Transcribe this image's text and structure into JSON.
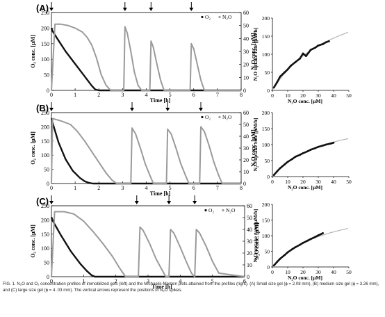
{
  "figure": {
    "caption": "FIG. 1. N₂O and O₂ concentration profiles of immobilized gels (left) and the Michaelis-Menten plots attained from the profiles (right). (A) Small size gel (ϕ = 2.08 mm), (B) medium size gel (ϕ = 3.26 mm), and (C) large size gel (ϕ = 4 .03 mm). The vertical arrows represent the positions of N₂O spikes."
  },
  "colors": {
    "o2": "#111111",
    "n2o": "#9a9a9a",
    "fit": "#b4b4b4",
    "axis": "#000000"
  },
  "chart_data": [
    {
      "panel": "(A)",
      "type": "line",
      "xlabel": "Time [h]",
      "ylabel": "O₂ conc. [μM]",
      "y2label": "N₂O conc. [μM]",
      "xlim": [
        0,
        8
      ],
      "xticks": [
        0,
        1,
        2,
        3,
        4,
        5,
        6,
        7,
        8
      ],
      "ylim": [
        0,
        250
      ],
      "yticks": [
        0,
        50,
        100,
        150,
        200,
        250
      ],
      "y2lim": [
        0,
        60
      ],
      "y2ticks": [
        0,
        10,
        20,
        30,
        40,
        50,
        60
      ],
      "legend": [
        "O₂",
        "N₂O"
      ],
      "legend_position": "top-right",
      "arrows_at_hours": [
        0,
        3.1,
        4.2,
        5.9
      ],
      "series": [
        {
          "name": "O₂",
          "axis": "left",
          "x": [
            0,
            0.05,
            0.3,
            0.6,
            1.0,
            1.4,
            1.7,
            1.85,
            2.0,
            8.0
          ],
          "y": [
            200,
            190,
            160,
            125,
            85,
            45,
            15,
            3,
            0,
            0
          ]
        },
        {
          "name": "N₂O",
          "axis": "right",
          "x": [
            0,
            0.15,
            0.4,
            0.7,
            1.0,
            1.3,
            1.5,
            1.7,
            1.9,
            2.1,
            2.3,
            2.5,
            3.05,
            3.1,
            3.2,
            3.35,
            3.5,
            3.65,
            3.8,
            4.15,
            4.2,
            4.3,
            4.45,
            4.6,
            4.75,
            5.85,
            5.9,
            6.0,
            6.15,
            6.3,
            6.45,
            8.0
          ],
          "y": [
            0,
            51,
            51,
            50,
            48,
            45,
            41,
            35,
            25,
            12,
            4,
            0,
            0,
            49,
            44,
            30,
            14,
            4,
            0,
            0,
            38,
            33,
            20,
            8,
            0,
            0,
            36,
            32,
            20,
            8,
            0,
            0
          ]
        }
      ]
    },
    {
      "panel": "(A)",
      "type": "scatter",
      "xlabel": "N₂O conc. [μM]",
      "ylabel": "N₂O uptake rate [μM/h]",
      "xlim": [
        0,
        50
      ],
      "xticks": [
        0,
        10,
        20,
        30,
        40,
        50
      ],
      "ylim": [
        0,
        200
      ],
      "yticks": [
        0,
        50,
        100,
        150,
        200
      ],
      "fit": {
        "Vmax": 300,
        "Km": 43
      },
      "series": [
        {
          "x": [
            1,
            3,
            5,
            8,
            10,
            12,
            15,
            18,
            20,
            22,
            25,
            28,
            30,
            33,
            35,
            37
          ],
          "y": [
            8,
            22,
            38,
            50,
            58,
            68,
            78,
            88,
            102,
            95,
            112,
            118,
            124,
            128,
            133,
            136
          ]
        }
      ]
    },
    {
      "panel": "(B)",
      "type": "line",
      "xlabel": "Time [h]",
      "ylabel": "O₂ conc. [μM]",
      "y2label": "N₂O conc. [μM]",
      "xlim": [
        0,
        8
      ],
      "xticks": [
        0,
        1,
        2,
        3,
        4,
        5,
        6,
        7,
        8
      ],
      "ylim": [
        0,
        250
      ],
      "yticks": [
        0,
        50,
        100,
        150,
        200,
        250
      ],
      "y2lim": [
        0,
        60
      ],
      "y2ticks": [
        0,
        10,
        20,
        30,
        40,
        50,
        60
      ],
      "legend": [
        "O₂",
        "N₂O"
      ],
      "legend_position": "top-right",
      "arrows_at_hours": [
        0,
        3.4,
        4.9,
        6.3
      ],
      "series": [
        {
          "name": "O₂",
          "axis": "left",
          "x": [
            0,
            0.1,
            0.3,
            0.6,
            0.9,
            1.2,
            1.4,
            1.6,
            1.75,
            8.0
          ],
          "y": [
            230,
            200,
            145,
            85,
            45,
            20,
            8,
            2,
            0,
            0
          ]
        },
        {
          "name": "N₂O",
          "axis": "right",
          "x": [
            0,
            0.05,
            0.4,
            0.8,
            1.1,
            1.4,
            1.7,
            2.0,
            2.3,
            2.55,
            2.75,
            3.35,
            3.4,
            3.55,
            3.75,
            3.95,
            4.15,
            4.3,
            4.85,
            4.9,
            5.05,
            5.25,
            5.45,
            5.65,
            5.8,
            6.25,
            6.3,
            6.45,
            6.65,
            6.85,
            7.05,
            7.2,
            8.0
          ],
          "y": [
            0,
            55,
            53,
            50,
            44,
            36,
            27,
            18,
            9,
            3,
            0,
            0,
            47,
            42,
            30,
            17,
            7,
            0,
            0,
            46,
            42,
            30,
            17,
            7,
            0,
            0,
            48,
            44,
            32,
            18,
            7,
            0,
            0
          ]
        }
      ]
    },
    {
      "panel": "(B)",
      "type": "scatter",
      "xlabel": "N₂O conc. [μM]",
      "ylabel": "N₂O uptake rate [μM/h]",
      "xlim": [
        0,
        50
      ],
      "xticks": [
        0,
        10,
        20,
        30,
        40,
        50
      ],
      "ylim": [
        0,
        200
      ],
      "yticks": [
        0,
        50,
        100,
        150,
        200
      ],
      "fit": {
        "Vmax": 200,
        "Km": 34
      },
      "series": [
        {
          "x": [
            1,
            3,
            5,
            8,
            10,
            13,
            15,
            18,
            20,
            23,
            25,
            28,
            30,
            33,
            35,
            38,
            40
          ],
          "y": [
            5,
            16,
            26,
            38,
            46,
            55,
            62,
            68,
            73,
            79,
            84,
            89,
            93,
            97,
            100,
            103,
            106
          ]
        }
      ]
    },
    {
      "panel": "(C)",
      "type": "line",
      "xlabel": "Time [h]",
      "ylabel": "O₂ conc. [μM]",
      "y2label": "N₂O conc. [μM]",
      "xlim": [
        0,
        6
      ],
      "xticks": [
        0,
        1,
        2,
        3,
        4,
        5,
        6
      ],
      "ylim": [
        0,
        250
      ],
      "yticks": [
        0,
        50,
        100,
        150,
        200,
        250
      ],
      "y2lim": [
        0,
        60
      ],
      "y2ticks": [
        0,
        10,
        20,
        30,
        40,
        50,
        60
      ],
      "legend": [
        "O₂",
        "N₂O"
      ],
      "legend_position": "top-right",
      "arrows_at_hours": [
        0,
        2.65,
        3.65,
        4.45
      ],
      "series": [
        {
          "name": "O₂",
          "axis": "left",
          "x": [
            0,
            0.05,
            0.3,
            0.6,
            0.9,
            1.1,
            1.25,
            1.35,
            6.0
          ],
          "y": [
            210,
            195,
            145,
            90,
            45,
            20,
            5,
            0,
            0
          ]
        },
        {
          "name": "N₂O",
          "axis": "right",
          "x": [
            0,
            0.1,
            0.4,
            0.7,
            1.0,
            1.3,
            1.6,
            1.9,
            2.1,
            2.3,
            2.7,
            2.75,
            2.85,
            3.05,
            3.25,
            3.45,
            3.55,
            3.65,
            3.7,
            3.8,
            4.0,
            4.2,
            4.35,
            4.45,
            4.5,
            4.6,
            4.8,
            5.0,
            5.2,
            6.0
          ],
          "y": [
            0,
            55,
            55,
            53,
            47,
            38,
            28,
            17,
            8,
            0,
            0,
            42,
            39,
            28,
            15,
            5,
            0,
            0,
            40,
            37,
            25,
            12,
            3,
            0,
            40,
            37,
            26,
            13,
            3,
            0
          ]
        }
      ]
    },
    {
      "panel": "(C)",
      "type": "scatter",
      "xlabel": "N₂O conc. [μM]",
      "ylabel": "N₂O uptake rate [μM/h]",
      "xlim": [
        0,
        50
      ],
      "xticks": [
        0,
        10,
        20,
        30,
        40,
        50
      ],
      "ylim": [
        0,
        200
      ],
      "yticks": [
        0,
        50,
        100,
        150,
        200
      ],
      "fit": {
        "Vmax": 210,
        "Km": 35
      },
      "series": [
        {
          "x": [
            1,
            3,
            5,
            8,
            10,
            13,
            15,
            18,
            20,
            23,
            25,
            28,
            30,
            33
          ],
          "y": [
            5,
            16,
            26,
            38,
            47,
            57,
            63,
            71,
            77,
            84,
            89,
            96,
            101,
            108
          ]
        }
      ]
    }
  ]
}
